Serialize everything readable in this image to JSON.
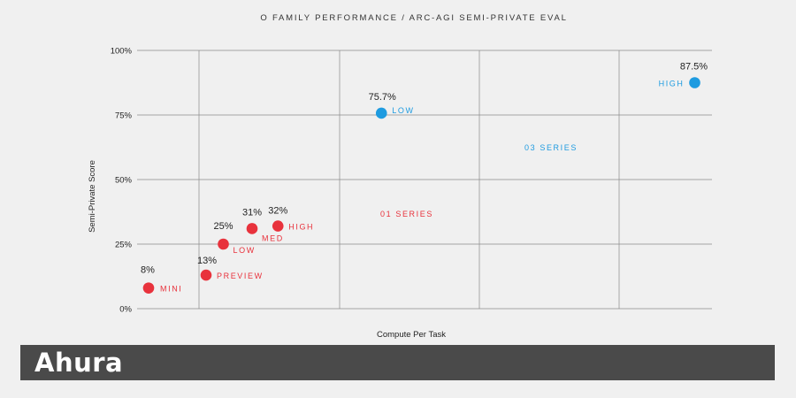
{
  "chart_data": {
    "type": "scatter",
    "title": "O FAMILY PERFORMANCE / ARC-AGI SEMI-PRIVATE EVAL",
    "xlabel": "Compute Per Task",
    "ylabel": "Semi-Private Score",
    "ylim": [
      0,
      100
    ],
    "y_ticks": [
      {
        "value": 0,
        "label": "0%"
      },
      {
        "value": 25,
        "label": "25%"
      },
      {
        "value": 50,
        "label": "50%"
      },
      {
        "value": 75,
        "label": "75%"
      },
      {
        "value": 100,
        "label": "100%"
      }
    ],
    "x_ticks_shown": false,
    "grid": true,
    "series": [
      {
        "name": "01 SERIES",
        "color": "#e8323c",
        "points": [
          {
            "label": "MINI",
            "score": 8,
            "score_label": "8%",
            "x_rel": 0.02
          },
          {
            "label": "PREVIEW",
            "score": 13,
            "score_label": "13%",
            "x_rel": 0.12
          },
          {
            "label": "LOW",
            "score": 25,
            "score_label": "25%",
            "x_rel": 0.15
          },
          {
            "label": "MED",
            "score": 31,
            "score_label": "31%",
            "x_rel": 0.2
          },
          {
            "label": "HIGH",
            "score": 32,
            "score_label": "32%",
            "x_rel": 0.245
          }
        ]
      },
      {
        "name": "03 SERIES",
        "color": "#1e9be0",
        "points": [
          {
            "label": "LOW",
            "score": 75.7,
            "score_label": "75.7%",
            "x_rel": 0.425
          },
          {
            "label": "HIGH",
            "score": 87.5,
            "score_label": "87.5%",
            "x_rel": 0.97
          }
        ]
      }
    ]
  },
  "footer": {
    "logo_text": "Ahura"
  }
}
